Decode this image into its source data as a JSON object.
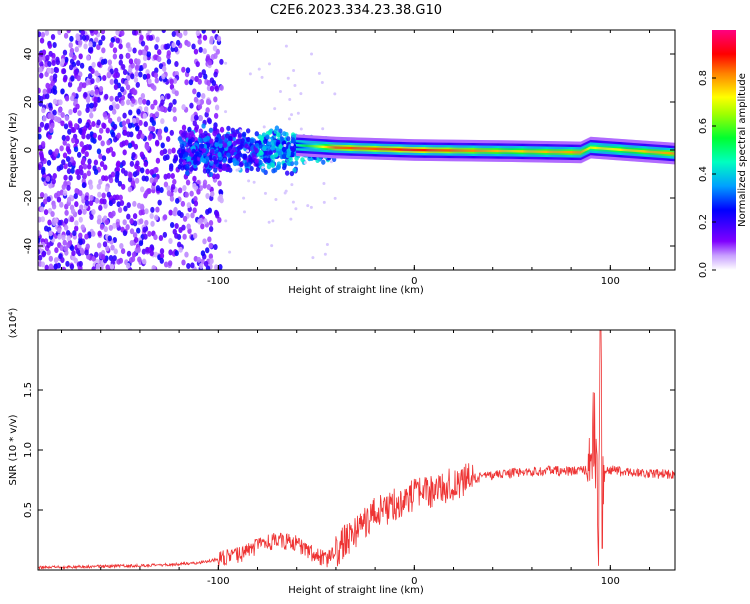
{
  "chart_data": [
    {
      "type": "heatmap",
      "title": "C2E6.2023.334.23.38.G10",
      "xlabel": "Height of straight line (km)",
      "ylabel": "Frequency (Hz)",
      "xlim": [
        -192,
        133
      ],
      "ylim": [
        -50,
        50
      ],
      "x_ticks": [
        -100,
        0,
        100
      ],
      "y_ticks": [
        -40,
        -20,
        0,
        20,
        40
      ],
      "grid": false,
      "colorbar": {
        "label": "Normalized spectral amplitude",
        "range": [
          0,
          1
        ],
        "ticks": [
          "0.0",
          "0.2",
          "0.4",
          "0.6",
          "0.8"
        ],
        "colormap": [
          "#ffffff",
          "#7f00ff",
          "#0000ff",
          "#00c8ff",
          "#00ff66",
          "#b4ff00",
          "#ffff00",
          "#ff8000",
          "#ff0000",
          "#ff0080"
        ]
      },
      "ridge": {
        "description_points": [
          {
            "x": -100,
            "freq": 0,
            "amp": 0.35
          },
          {
            "x": -60,
            "freq": 2,
            "amp": 0.45
          },
          {
            "x": -40,
            "freq": 1,
            "amp": 0.85
          },
          {
            "x": -20,
            "freq": 0.5,
            "amp": 0.85
          },
          {
            "x": 0,
            "freq": 0,
            "amp": 0.9
          },
          {
            "x": 50,
            "freq": -0.5,
            "amp": 0.75
          },
          {
            "x": 85,
            "freq": -1,
            "amp": 0.8
          },
          {
            "x": 90,
            "freq": 1,
            "amp": 0.7
          },
          {
            "x": 133,
            "freq": -1.5,
            "amp": 0.8
          }
        ]
      }
    },
    {
      "type": "line",
      "xlabel": "Height of straight line (km)",
      "ylabel": "SNR (10 * v/v)",
      "y_multiplier": "(x10⁴)",
      "xlim": [
        -192,
        133
      ],
      "ylim": [
        0,
        2
      ],
      "x_ticks": [
        -100,
        0,
        100
      ],
      "y_ticks": [
        "0.5",
        "1.0",
        "1.5"
      ],
      "color": "#ee3333",
      "series": [
        {
          "x": [
            -192,
            -160,
            -130,
            -110,
            -90,
            -80,
            -70,
            -60,
            -50,
            -45,
            -40,
            -35,
            -30,
            -25,
            -20,
            -15,
            -10,
            -5,
            0,
            10,
            20,
            30,
            40,
            50,
            60,
            70,
            80,
            88,
            92,
            94,
            95,
            96,
            98,
            105,
            115,
            125,
            133
          ],
          "y": [
            0.02,
            0.03,
            0.04,
            0.06,
            0.12,
            0.2,
            0.25,
            0.22,
            0.12,
            0.08,
            0.15,
            0.25,
            0.32,
            0.4,
            0.48,
            0.5,
            0.55,
            0.58,
            0.62,
            0.66,
            0.72,
            0.76,
            0.79,
            0.81,
            0.82,
            0.83,
            0.82,
            0.84,
            1.2,
            0.3,
            2.0,
            0.7,
            0.84,
            0.82,
            0.81,
            0.8,
            0.8
          ]
        }
      ]
    }
  ]
}
